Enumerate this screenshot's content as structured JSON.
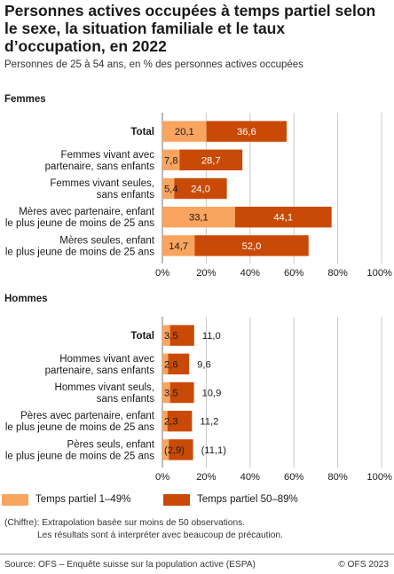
{
  "title": "Personnes actives occupées à temps partiel selon le sexe, la situation familiale et le taux d’occupation, en 2022",
  "subtitle": "Personnes de 25 à 54 ans, en % des personnes actives occupées",
  "legend": {
    "part1": "Temps partiel 1–49%",
    "part2": "Temps partiel 50–89%"
  },
  "colors": {
    "part1": "#f9a45f",
    "part2": "#c94a06",
    "grid": "#c8c8c8",
    "axis": "#777777"
  },
  "note": {
    "line1": "(Chiffre): Extrapolation basée sur moins de 50 observations.",
    "line2": "Les résultats sont à interpréter avec beaucoup de précaution."
  },
  "source": "Source: OFS – Enquête suisse sur la population active (ESPA)",
  "copyright": "© OFS 2023",
  "chart_data": [
    {
      "type": "bar",
      "orientation": "horizontal",
      "stacked": true,
      "panel_title": "Femmes",
      "categories": [
        [
          "Total"
        ],
        [
          "Femmes vivant avec",
          "partenaire, sans enfants"
        ],
        [
          "Femmes vivant seules,",
          "sans enfants"
        ],
        [
          "Mères avec partenaire, enfant",
          "le plus jeune de moins de 25 ans"
        ],
        [
          "Mères seules, enfant",
          "le plus jeune de moins de 25 ans"
        ]
      ],
      "series": [
        {
          "name": "Temps partiel 1–49%",
          "values": [
            20.1,
            7.8,
            5.4,
            33.1,
            14.7
          ],
          "labels": [
            "20,1",
            "7,8",
            "5,4",
            "33,1",
            "14,7"
          ]
        },
        {
          "name": "Temps partiel 50–89%",
          "values": [
            36.6,
            28.7,
            24.0,
            44.1,
            52.0
          ],
          "labels": [
            "36,6",
            "28,7",
            "24,0",
            "44,1",
            "52,0"
          ]
        }
      ],
      "xlim": [
        0,
        100
      ],
      "xticks": [
        "0%",
        "20%",
        "40%",
        "60%",
        "80%",
        "100%"
      ]
    },
    {
      "type": "bar",
      "orientation": "horizontal",
      "stacked": true,
      "panel_title": "Hommes",
      "categories": [
        [
          "Total"
        ],
        [
          "Hommes vivant avec",
          "partenaire, sans enfants"
        ],
        [
          "Hommes vivant seuls,",
          "sans enfants"
        ],
        [
          "Pères avec partenaire, enfant",
          "le plus jeune de moins de 25 ans"
        ],
        [
          "Pères seuls, enfant",
          "le plus jeune de moins de 25 ans"
        ]
      ],
      "series": [
        {
          "name": "Temps partiel 1–49%",
          "values": [
            3.5,
            2.6,
            3.5,
            2.3,
            2.9
          ],
          "labels": [
            "3,5",
            "2,6",
            "3,5",
            "2,3",
            "(2,9)"
          ]
        },
        {
          "name": "Temps partiel 50–89%",
          "values": [
            11.0,
            9.6,
            10.9,
            11.2,
            11.1
          ],
          "labels": [
            "11,0",
            "9,6",
            "10,9",
            "11,2",
            "(11,1)"
          ]
        }
      ],
      "xlim": [
        0,
        100
      ],
      "xticks": [
        "0%",
        "20%",
        "40%",
        "60%",
        "80%",
        "100%"
      ]
    }
  ]
}
